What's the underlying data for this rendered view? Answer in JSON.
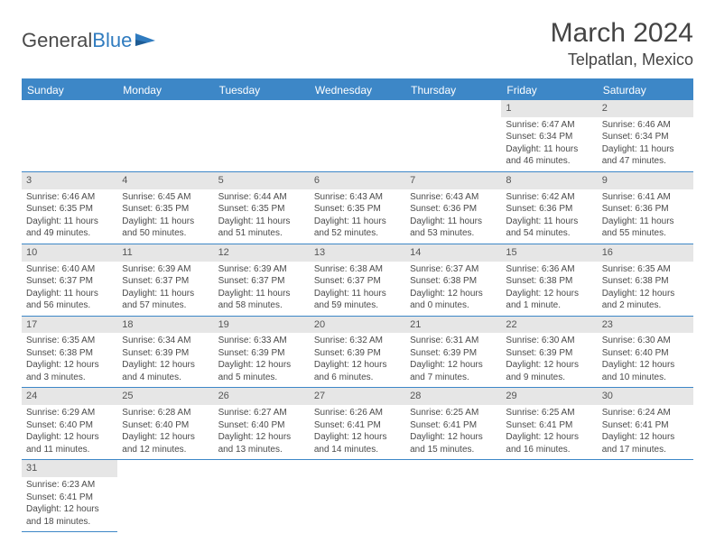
{
  "brand": {
    "part1": "General",
    "part2": "Blue"
  },
  "title": {
    "month": "March 2024",
    "location": "Telpatlan, Mexico"
  },
  "colors": {
    "header_bg": "#3d87c7",
    "header_text": "#ffffff",
    "daynum_bg": "#e6e6e6",
    "border": "#3d87c7",
    "text": "#4a4a4a",
    "logo_blue": "#2f7bbf"
  },
  "weekdays": [
    "Sunday",
    "Monday",
    "Tuesday",
    "Wednesday",
    "Thursday",
    "Friday",
    "Saturday"
  ],
  "labels": {
    "sunrise": "Sunrise: ",
    "sunset": "Sunset: ",
    "daylight": "Daylight: "
  },
  "weeks": [
    [
      null,
      null,
      null,
      null,
      null,
      {
        "n": "1",
        "sunrise": "6:47 AM",
        "sunset": "6:34 PM",
        "daylight": "11 hours and 46 minutes."
      },
      {
        "n": "2",
        "sunrise": "6:46 AM",
        "sunset": "6:34 PM",
        "daylight": "11 hours and 47 minutes."
      }
    ],
    [
      {
        "n": "3",
        "sunrise": "6:46 AM",
        "sunset": "6:35 PM",
        "daylight": "11 hours and 49 minutes."
      },
      {
        "n": "4",
        "sunrise": "6:45 AM",
        "sunset": "6:35 PM",
        "daylight": "11 hours and 50 minutes."
      },
      {
        "n": "5",
        "sunrise": "6:44 AM",
        "sunset": "6:35 PM",
        "daylight": "11 hours and 51 minutes."
      },
      {
        "n": "6",
        "sunrise": "6:43 AM",
        "sunset": "6:35 PM",
        "daylight": "11 hours and 52 minutes."
      },
      {
        "n": "7",
        "sunrise": "6:43 AM",
        "sunset": "6:36 PM",
        "daylight": "11 hours and 53 minutes."
      },
      {
        "n": "8",
        "sunrise": "6:42 AM",
        "sunset": "6:36 PM",
        "daylight": "11 hours and 54 minutes."
      },
      {
        "n": "9",
        "sunrise": "6:41 AM",
        "sunset": "6:36 PM",
        "daylight": "11 hours and 55 minutes."
      }
    ],
    [
      {
        "n": "10",
        "sunrise": "6:40 AM",
        "sunset": "6:37 PM",
        "daylight": "11 hours and 56 minutes."
      },
      {
        "n": "11",
        "sunrise": "6:39 AM",
        "sunset": "6:37 PM",
        "daylight": "11 hours and 57 minutes."
      },
      {
        "n": "12",
        "sunrise": "6:39 AM",
        "sunset": "6:37 PM",
        "daylight": "11 hours and 58 minutes."
      },
      {
        "n": "13",
        "sunrise": "6:38 AM",
        "sunset": "6:37 PM",
        "daylight": "11 hours and 59 minutes."
      },
      {
        "n": "14",
        "sunrise": "6:37 AM",
        "sunset": "6:38 PM",
        "daylight": "12 hours and 0 minutes."
      },
      {
        "n": "15",
        "sunrise": "6:36 AM",
        "sunset": "6:38 PM",
        "daylight": "12 hours and 1 minute."
      },
      {
        "n": "16",
        "sunrise": "6:35 AM",
        "sunset": "6:38 PM",
        "daylight": "12 hours and 2 minutes."
      }
    ],
    [
      {
        "n": "17",
        "sunrise": "6:35 AM",
        "sunset": "6:38 PM",
        "daylight": "12 hours and 3 minutes."
      },
      {
        "n": "18",
        "sunrise": "6:34 AM",
        "sunset": "6:39 PM",
        "daylight": "12 hours and 4 minutes."
      },
      {
        "n": "19",
        "sunrise": "6:33 AM",
        "sunset": "6:39 PM",
        "daylight": "12 hours and 5 minutes."
      },
      {
        "n": "20",
        "sunrise": "6:32 AM",
        "sunset": "6:39 PM",
        "daylight": "12 hours and 6 minutes."
      },
      {
        "n": "21",
        "sunrise": "6:31 AM",
        "sunset": "6:39 PM",
        "daylight": "12 hours and 7 minutes."
      },
      {
        "n": "22",
        "sunrise": "6:30 AM",
        "sunset": "6:39 PM",
        "daylight": "12 hours and 9 minutes."
      },
      {
        "n": "23",
        "sunrise": "6:30 AM",
        "sunset": "6:40 PM",
        "daylight": "12 hours and 10 minutes."
      }
    ],
    [
      {
        "n": "24",
        "sunrise": "6:29 AM",
        "sunset": "6:40 PM",
        "daylight": "12 hours and 11 minutes."
      },
      {
        "n": "25",
        "sunrise": "6:28 AM",
        "sunset": "6:40 PM",
        "daylight": "12 hours and 12 minutes."
      },
      {
        "n": "26",
        "sunrise": "6:27 AM",
        "sunset": "6:40 PM",
        "daylight": "12 hours and 13 minutes."
      },
      {
        "n": "27",
        "sunrise": "6:26 AM",
        "sunset": "6:41 PM",
        "daylight": "12 hours and 14 minutes."
      },
      {
        "n": "28",
        "sunrise": "6:25 AM",
        "sunset": "6:41 PM",
        "daylight": "12 hours and 15 minutes."
      },
      {
        "n": "29",
        "sunrise": "6:25 AM",
        "sunset": "6:41 PM",
        "daylight": "12 hours and 16 minutes."
      },
      {
        "n": "30",
        "sunrise": "6:24 AM",
        "sunset": "6:41 PM",
        "daylight": "12 hours and 17 minutes."
      }
    ],
    [
      {
        "n": "31",
        "sunrise": "6:23 AM",
        "sunset": "6:41 PM",
        "daylight": "12 hours and 18 minutes."
      },
      null,
      null,
      null,
      null,
      null,
      null
    ]
  ]
}
